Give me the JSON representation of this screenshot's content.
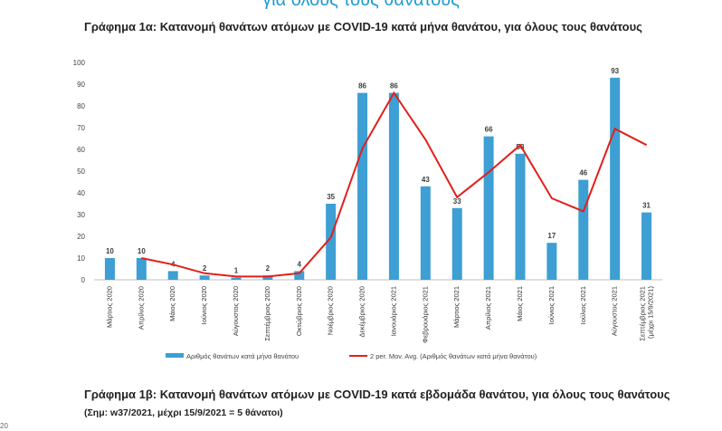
{
  "page": {
    "top_title": "για όλους τους θανάτους",
    "chart_title": "Γράφημα 1α: Κατανομή θανάτων ατόμων με COVID-19 κατά μήνα θανάτου, για όλους τους θανάτους",
    "bottom_title": "Γράφημα 1β: Κατανομή θανάτων ατόμων με COVID-19 κατά εβδομάδα θανάτου, για όλους τους θανάτους",
    "bottom_note": "(Σημ: w37/2021, μέχρι 15/9/2021 = 5 θάνατοι)",
    "corner_mark": "20"
  },
  "colors": {
    "bar": "#3d9fd3",
    "line": "#e0211c",
    "title_blue": "#1f9bd1"
  },
  "chart_data": {
    "type": "bar",
    "title": "Γράφημα 1α: Κατανομή θανάτων ατόμων με COVID-19 κατά μήνα θανάτου, για όλους τους θανάτους",
    "categories": [
      "Μάρτιος 2020",
      "Απρίλιος 2020",
      "Μάιος 2020",
      "Ιούνιος 2020",
      "Αύγουστος 2020",
      "Σεπτέμβριος 2020",
      "Οκτώβριος 2020",
      "Νοέμβριος 2020",
      "Δεκέμβριος 2020",
      "Ιανουάριος 2021",
      "Φεβρουάριος 2021",
      "Μάρτιος 2021",
      "Απρίλιος 2021",
      "Μάιος 2021",
      "Ιούνιος 2021",
      "Ιούλιος 2021",
      "Αύγουστος 2021",
      "Σεπτέμβριος 2021|(μέχρι 15/9/2021)"
    ],
    "series": [
      {
        "name": "Αριθμός θανάτων κατά μήνα θανάτου",
        "type": "bar",
        "values": [
          10,
          10,
          4,
          2,
          1,
          2,
          4,
          35,
          86,
          86,
          43,
          33,
          66,
          58,
          17,
          46,
          93,
          31
        ]
      },
      {
        "name": "2 per. Mov. Avg. (Αριθμός θανάτων κατά μήνα θανάτου)",
        "type": "line",
        "values": [
          null,
          10,
          7,
          3,
          1.5,
          1.5,
          3,
          19.5,
          60.5,
          86,
          64.5,
          38,
          49.5,
          62,
          37.5,
          31.5,
          69.5,
          62
        ]
      }
    ],
    "yticks": [
      0,
      10,
      20,
      30,
      40,
      50,
      60,
      70,
      80,
      90,
      100
    ],
    "ylim": [
      0,
      100
    ],
    "legend_position": "bottom",
    "grid": false
  }
}
